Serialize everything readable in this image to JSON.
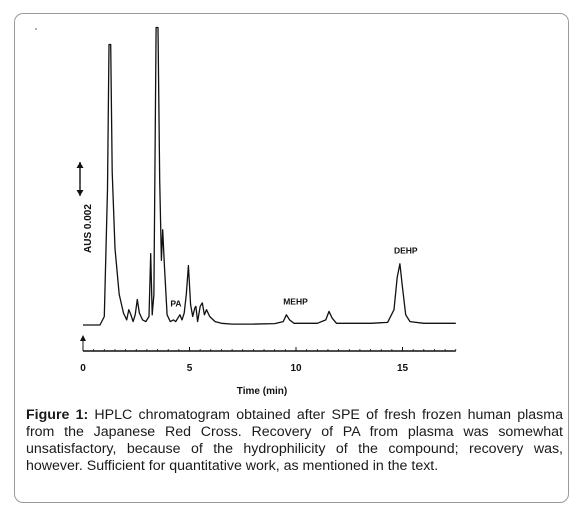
{
  "chart_data": {
    "type": "line",
    "title": "",
    "xlabel": "Time (min)",
    "ylabel": "AUS 0.002",
    "xlim": [
      0,
      17.5
    ],
    "x_ticks": [
      0,
      5,
      10,
      15
    ],
    "x_tick_labels": [
      "0",
      "5",
      "10",
      "15"
    ],
    "scale_bar_aus": 0.002,
    "baseline_aus": 0.0,
    "series": [
      {
        "points": [
          [
            0.0,
            0.0
          ],
          [
            0.8,
            0.0
          ],
          [
            1.0,
            0.0005
          ],
          [
            1.15,
            0.008
          ],
          [
            1.22,
            0.0165
          ],
          [
            1.3,
            0.0165
          ],
          [
            1.37,
            0.009
          ],
          [
            1.5,
            0.0045
          ],
          [
            1.7,
            0.0018
          ],
          [
            1.9,
            0.0007
          ],
          [
            2.05,
            0.0003
          ],
          [
            2.15,
            0.0009
          ],
          [
            2.25,
            0.0006
          ],
          [
            2.35,
            0.0002
          ],
          [
            2.45,
            0.0006
          ],
          [
            2.55,
            0.0015
          ],
          [
            2.65,
            0.0007
          ],
          [
            2.8,
            0.0003
          ],
          [
            2.95,
            0.0002
          ],
          [
            3.1,
            0.0005
          ],
          [
            3.18,
            0.0042
          ],
          [
            3.25,
            0.0006
          ],
          [
            3.33,
            0.0018
          ],
          [
            3.43,
            0.0175
          ],
          [
            3.52,
            0.0175
          ],
          [
            3.6,
            0.0085
          ],
          [
            3.68,
            0.0038
          ],
          [
            3.74,
            0.0056
          ],
          [
            3.82,
            0.0035
          ],
          [
            3.95,
            0.0006
          ],
          [
            4.1,
            0.0002
          ],
          [
            4.25,
            0.0003
          ],
          [
            4.35,
            0.0002
          ],
          [
            4.45,
            0.0004
          ],
          [
            4.55,
            0.0006
          ],
          [
            4.65,
            0.0003
          ],
          [
            4.75,
            0.0007
          ],
          [
            4.85,
            0.0018
          ],
          [
            4.95,
            0.0035
          ],
          [
            5.05,
            0.0012
          ],
          [
            5.15,
            0.0005
          ],
          [
            5.25,
            0.001
          ],
          [
            5.3,
            0.0011
          ],
          [
            5.38,
            0.0002
          ],
          [
            5.5,
            0.0011
          ],
          [
            5.6,
            0.0013
          ],
          [
            5.7,
            0.0006
          ],
          [
            5.8,
            0.0009
          ],
          [
            5.95,
            0.0005
          ],
          [
            6.2,
            0.0002
          ],
          [
            6.5,
            0.0001
          ],
          [
            7.0,
            5e-05
          ],
          [
            8.0,
            5e-05
          ],
          [
            9.0,
            8e-05
          ],
          [
            9.4,
            0.0002
          ],
          [
            9.55,
            0.0006
          ],
          [
            9.7,
            0.0003
          ],
          [
            9.9,
            0.0001
          ],
          [
            10.5,
            0.0001
          ],
          [
            11.0,
            0.0001
          ],
          [
            11.4,
            0.0003
          ],
          [
            11.55,
            0.0008
          ],
          [
            11.7,
            0.0004
          ],
          [
            11.9,
            0.0001
          ],
          [
            12.5,
            0.0001
          ],
          [
            13.5,
            0.0001
          ],
          [
            14.3,
            0.00015
          ],
          [
            14.6,
            0.0009
          ],
          [
            14.75,
            0.0028
          ],
          [
            14.88,
            0.0036
          ],
          [
            15.0,
            0.0022
          ],
          [
            15.15,
            0.0006
          ],
          [
            15.35,
            0.0002
          ],
          [
            16.0,
            0.0001
          ],
          [
            17.0,
            0.0001
          ],
          [
            17.5,
            0.0001
          ]
        ]
      }
    ],
    "annotations": [
      {
        "text": "PA",
        "x": 4.1,
        "y": 0.0011
      },
      {
        "text": "MEHP",
        "x": 9.4,
        "y": 0.0012
      },
      {
        "text": "DEHP",
        "x": 14.6,
        "y": 0.0042
      }
    ],
    "grid": false,
    "legend": "none"
  },
  "caption": {
    "label": "Figure 1:",
    "text": " HPLC chromatogram obtained after SPE of fresh frozen human plasma from the Japanese Red Cross. Recovery of PA from plasma was somewhat unsatisfactory, because of the hydrophilicity of the compound; recovery was, however. Sufficient for quantitative work, as mentioned in the text."
  }
}
